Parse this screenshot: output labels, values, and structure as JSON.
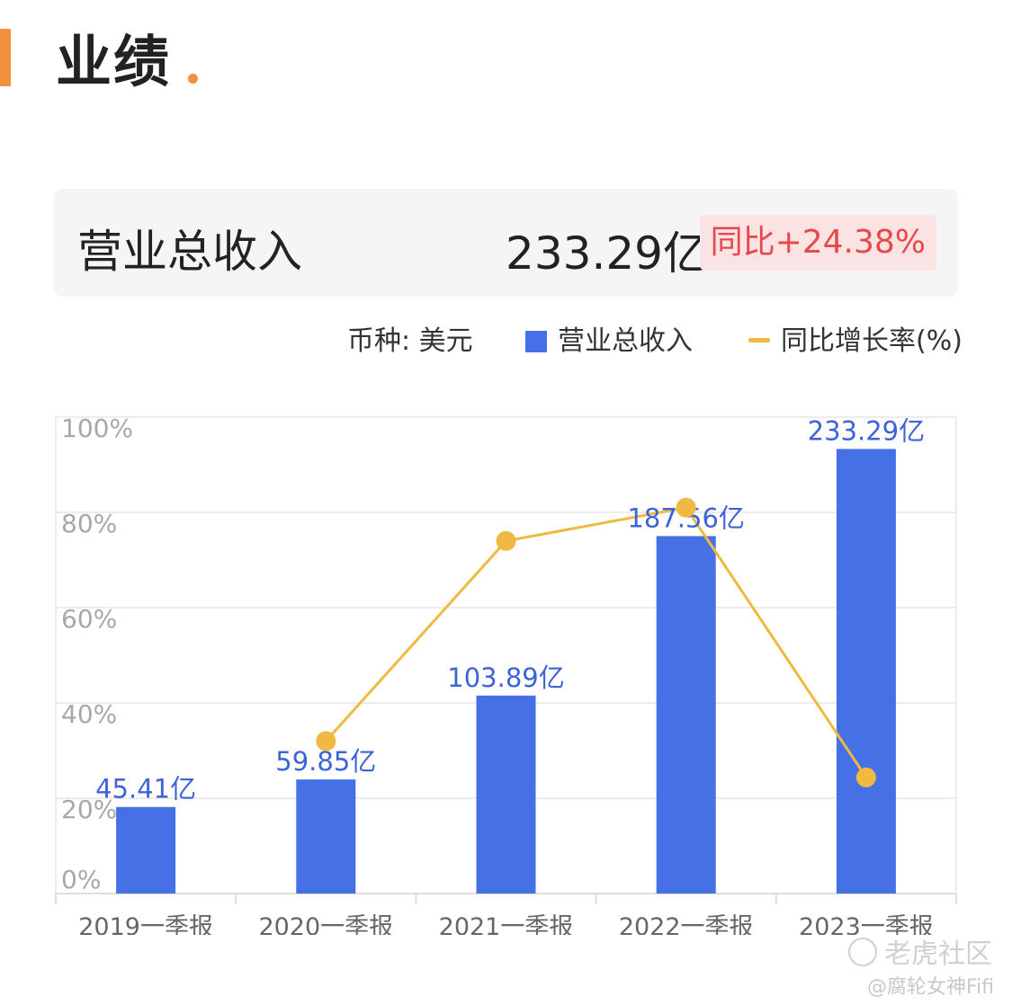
{
  "header": {
    "title": "业绩"
  },
  "summary": {
    "label": "营业总收入",
    "value": "233.29亿",
    "yoy_badge": "同比+24.38%"
  },
  "legend": {
    "currency": "币种: 美元",
    "bar_series": "营业总收入",
    "line_series": "同比增长率(%)"
  },
  "colors": {
    "accent": "#f0913c",
    "bar": "#4570e6",
    "line": "#f0b942",
    "badge_bg": "#fbe3e3",
    "badge_text": "#e5484d"
  },
  "chart_data": {
    "type": "bar",
    "categories": [
      "2019一季报",
      "2020一季报",
      "2021一季报",
      "2022一季报",
      "2023一季报"
    ],
    "series": [
      {
        "name": "营业总收入",
        "type": "bar",
        "values": [
          45.41,
          59.85,
          103.89,
          187.56,
          233.29
        ],
        "labels": [
          "45.41亿",
          "59.85亿",
          "103.89亿",
          "187.56亿",
          "233.29亿"
        ]
      },
      {
        "name": "同比增长率(%)",
        "type": "line",
        "values": [
          null,
          32,
          74,
          81,
          24.38
        ]
      }
    ],
    "yticks": [
      "0%",
      "20%",
      "40%",
      "60%",
      "80%",
      "100%"
    ],
    "ylim_percent": [
      0,
      100
    ],
    "ylim_revenue": [
      0,
      250
    ],
    "grid": true,
    "legend_position": "top-right"
  },
  "watermark": {
    "text": "老虎社区",
    "credit": "@腐轮女神Fifi"
  }
}
